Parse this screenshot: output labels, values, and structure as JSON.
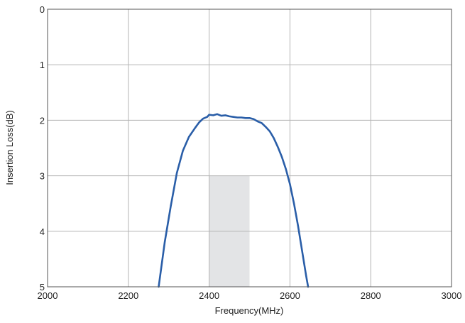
{
  "chart_data": {
    "type": "line",
    "title": "",
    "xlabel": "Frequency(MHz)",
    "ylabel": "Insertion Loss(dB)",
    "xlim": [
      2000,
      3000
    ],
    "ylim": [
      0,
      5
    ],
    "y_inverted": true,
    "grid": true,
    "x_ticks": [
      2000,
      2200,
      2400,
      2600,
      2800,
      3000
    ],
    "y_ticks": [
      0,
      1,
      2,
      3,
      4,
      5
    ],
    "x_tick_labels": [
      "2000",
      "2200",
      "2400",
      "2600",
      "2800",
      "3000"
    ],
    "y_tick_labels": [
      "0",
      "1",
      "2",
      "3",
      "4",
      "5"
    ],
    "shaded_region": {
      "x": [
        2400,
        2500
      ],
      "y": [
        3,
        5
      ],
      "color": "#e3e4e6"
    },
    "series": [
      {
        "color": "#2a5ea8",
        "x": [
          2275,
          2290,
          2305,
          2320,
          2335,
          2350,
          2365,
          2375,
          2385,
          2395,
          2400,
          2410,
          2420,
          2430,
          2440,
          2450,
          2460,
          2470,
          2480,
          2490,
          2500,
          2510,
          2520,
          2530,
          2540,
          2550,
          2560,
          2570,
          2580,
          2590,
          2600,
          2610,
          2620,
          2630,
          2640,
          2645
        ],
        "y": [
          5.0,
          4.2,
          3.55,
          2.95,
          2.55,
          2.3,
          2.14,
          2.04,
          1.97,
          1.94,
          1.9,
          1.91,
          1.89,
          1.92,
          1.91,
          1.93,
          1.94,
          1.95,
          1.95,
          1.96,
          1.96,
          1.98,
          2.02,
          2.05,
          2.12,
          2.2,
          2.32,
          2.48,
          2.66,
          2.88,
          3.15,
          3.5,
          3.9,
          4.35,
          4.8,
          5.0
        ]
      }
    ]
  }
}
